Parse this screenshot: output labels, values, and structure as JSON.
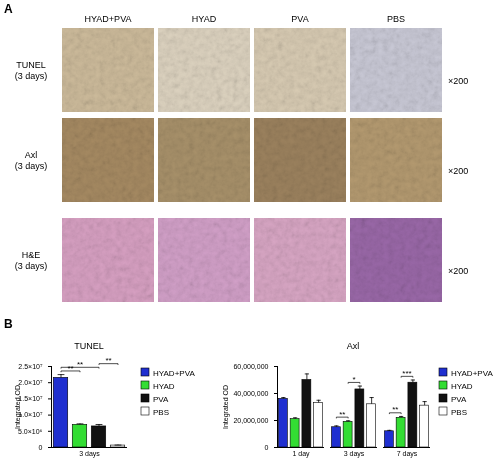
{
  "panel_labels": [
    "A",
    "B"
  ],
  "image_grid": {
    "columns": [
      "HYAD+PVA",
      "HYAD",
      "PVA",
      "PBS"
    ],
    "rows": [
      {
        "label": "TUNEL",
        "sublabel": "(3 days)",
        "magnification": "×200"
      },
      {
        "label": "Axl",
        "sublabel": "(3 days)",
        "magnification": "×200"
      },
      {
        "label": "H&E",
        "sublabel": "(3 days)",
        "magnification": "×200"
      }
    ]
  },
  "chart_data": [
    {
      "type": "bar",
      "title": "TUNEL",
      "y_label": "Integrated OD",
      "categories": [
        "3 days"
      ],
      "series": [
        {
          "name": "HYAD+PVA",
          "color": "#1f2fd0",
          "values": [
            21500000
          ],
          "errors": [
            1000000
          ]
        },
        {
          "name": "HYAD",
          "color": "#33dd33",
          "values": [
            7000000
          ],
          "errors": [
            300000
          ]
        },
        {
          "name": "PVA",
          "color": "#111111",
          "values": [
            6500000
          ],
          "errors": [
            600000
          ]
        },
        {
          "name": "PBS",
          "color": "#ffffff",
          "values": [
            600000
          ],
          "errors": [
            150000
          ]
        }
      ],
      "ylim": [
        0,
        25000000
      ],
      "yticks": [
        0,
        {
          "value": 5000000,
          "label": "5.0×10⁶"
        },
        {
          "value": 10000000,
          "label": "1.0×10⁷"
        },
        {
          "value": 15000000,
          "label": "1.5×10⁷"
        },
        {
          "value": 20000000,
          "label": "2.0×10⁷"
        },
        {
          "value": 25000000,
          "label": "2.5×10⁷"
        }
      ],
      "legend": "right",
      "significance": [
        {
          "category": "3 days",
          "from": "HYAD+PVA",
          "to": "HYAD",
          "label": "**"
        },
        {
          "category": "3 days",
          "from": "HYAD+PVA",
          "to": "PVA",
          "label": "**"
        },
        {
          "category": "3 days",
          "from": "PVA",
          "to": "PBS",
          "label": "**"
        }
      ]
    },
    {
      "type": "bar",
      "title": "Axl",
      "y_label": "Integrated OD",
      "categories": [
        "1 day",
        "3 days",
        "7 days"
      ],
      "series": [
        {
          "name": "HYAD+PVA",
          "color": "#1f2fd0",
          "values": [
            36000000,
            15000000,
            12000000
          ],
          "errors": [
            1000000,
            1000000,
            700000
          ]
        },
        {
          "name": "HYAD",
          "color": "#33dd33",
          "values": [
            21000000,
            19000000,
            22000000
          ],
          "errors": [
            1000000,
            800000,
            1000000
          ]
        },
        {
          "name": "PVA",
          "color": "#111111",
          "values": [
            50000000,
            43000000,
            48000000
          ],
          "errors": [
            4500000,
            2500000,
            2000000
          ]
        },
        {
          "name": "PBS",
          "color": "#ffffff",
          "values": [
            33000000,
            32000000,
            31000000
          ],
          "errors": [
            2000000,
            5000000,
            3000000
          ]
        }
      ],
      "ylim": [
        0,
        60000000
      ],
      "yticks": [
        0,
        {
          "value": 20000000,
          "label": "20,000,000"
        },
        {
          "value": 40000000,
          "label": "40,000,000"
        },
        {
          "value": 60000000,
          "label": "60,000,000"
        }
      ],
      "legend": "right",
      "significance": [
        {
          "category": "3 days",
          "from": "HYAD+PVA",
          "to": "HYAD",
          "label": "**"
        },
        {
          "category": "3 days",
          "from": "HYAD",
          "to": "PVA",
          "label": "*"
        },
        {
          "category": "7 days",
          "from": "HYAD+PVA",
          "to": "HYAD",
          "label": "**"
        },
        {
          "category": "7 days",
          "from": "HYAD",
          "to": "PVA",
          "label": "***"
        }
      ]
    }
  ]
}
